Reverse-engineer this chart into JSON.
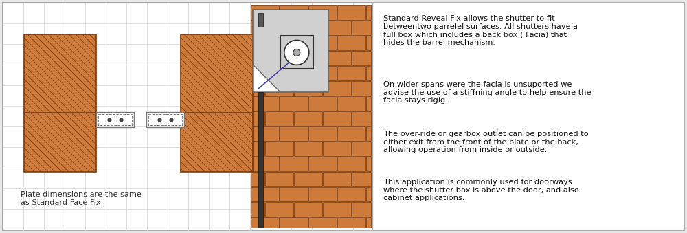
{
  "bg_color": "#e8e8e8",
  "border_color": "#aaaaaa",
  "brick_fill": "#CD7A3A",
  "brick_line": "#7A3A10",
  "grid_color": "#d0d0d0",
  "paragraph1": "Standard Reveal Fix allows the shutter to fit\nbetweentwo parrelel surfaces. All shutters have a\nfull box which includes a back box ( Facia) that\nhides the barrel mechanism.",
  "paragraph2": "On wider spans were the facia is unsuported we\nadvise the use of a stiffning angle to help ensure the\nfacia stays rigig.",
  "paragraph3": "The over-ride or gearbox outlet can be positioned to\neither exit from the front of the plate or the back,\nallowing operation from inside or outside.",
  "paragraph4": "This application is commonly used for doorways\nwhere the shutter box is above the door, and also\ncabinet applications.",
  "caption": "Plate dimensions are the same\nas Standard Face Fix"
}
